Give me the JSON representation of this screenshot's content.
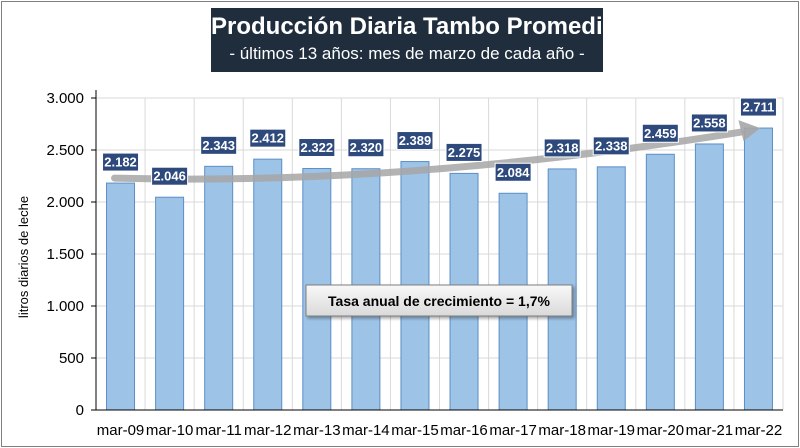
{
  "title": "Producción Diaria Tambo Promedio",
  "subtitle": "- últimos 13 años: mes de marzo de cada año -",
  "chart_data": {
    "type": "bar",
    "categories": [
      "mar-09",
      "mar-10",
      "mar-11",
      "mar-12",
      "mar-13",
      "mar-14",
      "mar-15",
      "mar-16",
      "mar-17",
      "mar-18",
      "mar-19",
      "mar-20",
      "mar-21",
      "mar-22"
    ],
    "values": [
      2182,
      2046,
      2343,
      2412,
      2322,
      2320,
      2389,
      2275,
      2084,
      2318,
      2338,
      2459,
      2558,
      2711
    ],
    "value_labels": [
      "2.182",
      "2.046",
      "2.343",
      "2.412",
      "2.322",
      "2.320",
      "2.389",
      "2.275",
      "2.084",
      "2.318",
      "2.338",
      "2.459",
      "2.558",
      "2.711"
    ],
    "ylabel": "litros diarios de leche",
    "ylim": [
      0,
      3000
    ],
    "yticks": [
      0,
      500,
      1000,
      1500,
      2000,
      2500,
      3000
    ],
    "ytick_labels": [
      "0",
      "500",
      "1.000",
      "1.500",
      "2.000",
      "2.500",
      "3.000"
    ],
    "grid": true,
    "trend": {
      "from": 2230,
      "to": 2710
    },
    "annotation": "Tasa anual de crecimiento = 1,7%",
    "colors": {
      "bar_fill": "#9dc3e6",
      "bar_stroke": "#5b8fc7",
      "label_bg": "#2e4a7d",
      "trend": "#a6a6a6",
      "grid": "#d9d9d9"
    }
  }
}
